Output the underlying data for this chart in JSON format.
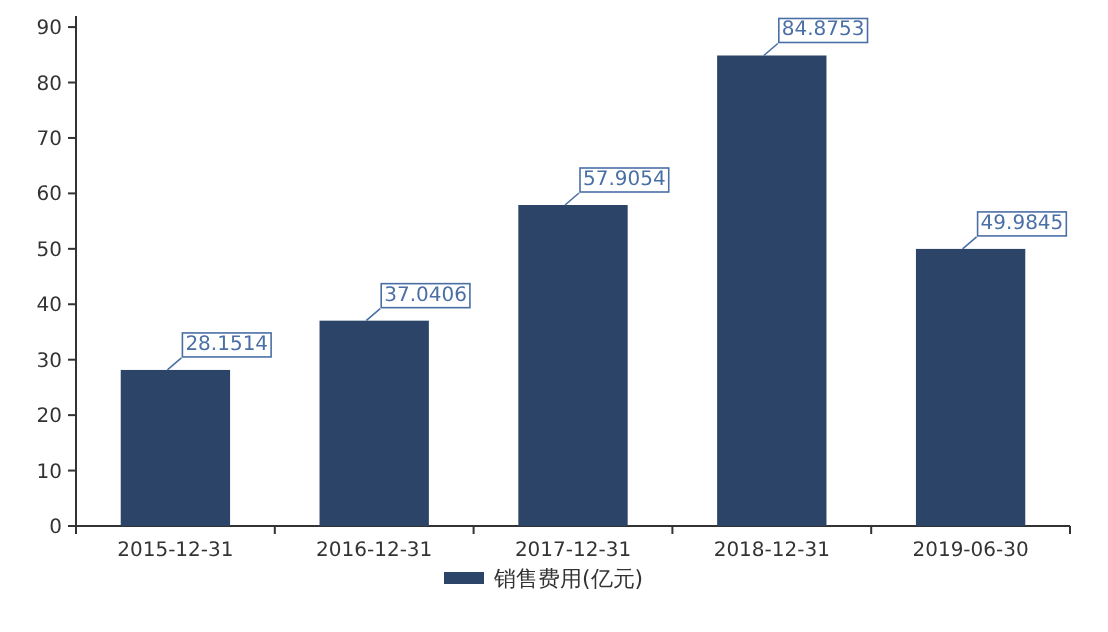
{
  "chart_data": {
    "type": "bar",
    "categories": [
      "2015-12-31",
      "2016-12-31",
      "2017-12-31",
      "2018-12-31",
      "2019-06-30"
    ],
    "series": [
      {
        "name": "销售费用(亿元)",
        "color": "#2c4468",
        "values": [
          28.1514,
          37.0406,
          57.9054,
          84.8753,
          49.9845
        ]
      }
    ],
    "ylim": [
      0,
      92
    ],
    "yticks": [
      0,
      10,
      20,
      30,
      40,
      50,
      60,
      70,
      80,
      90
    ],
    "data_labels": true,
    "legend": "bottom"
  }
}
